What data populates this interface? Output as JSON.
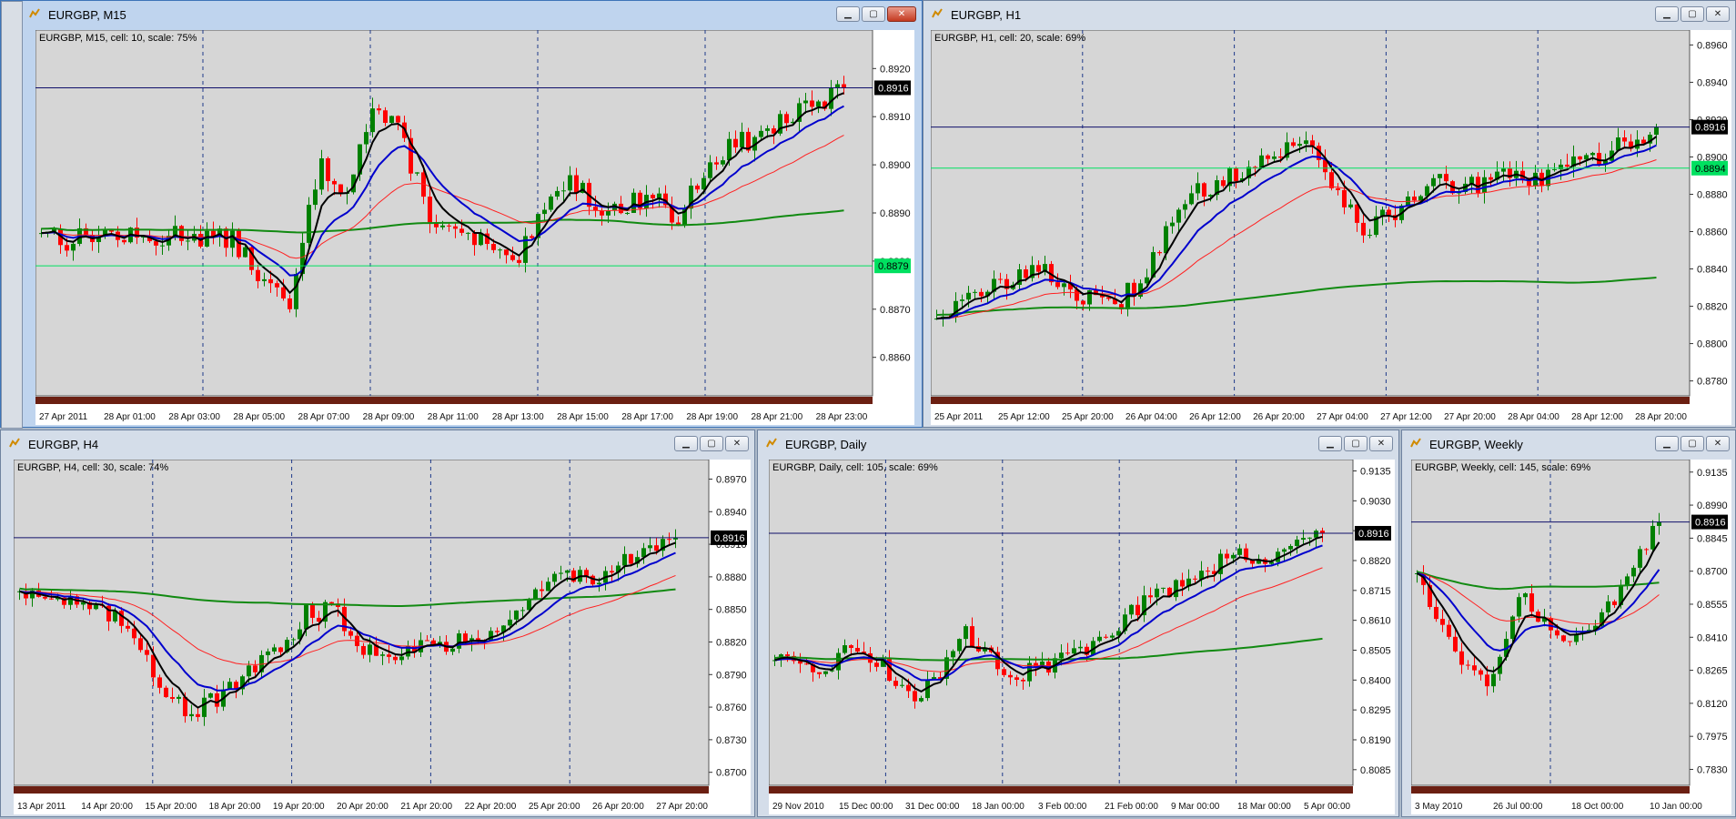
{
  "colors": {
    "chart_bg": "#d6d6d6",
    "bull": "#008000",
    "bear": "#ff0000",
    "ema_fast": "#000000",
    "ema_mid": "#0000cd",
    "ema_slow": "#ff2020",
    "sma_long": "#128a12",
    "grid": "#1e3a8a",
    "price_line": "#10106a",
    "hline": "#00e060"
  },
  "charts": [
    {
      "id": "m15",
      "title": "EURGBP, M15",
      "info": "EURGBP, M15, cell: 10, scale: 75%",
      "y_ticks": [
        "0.8920",
        "0.8910",
        "0.8900",
        "0.8890",
        "0.8880",
        "0.8870",
        "0.8860"
      ],
      "x_ticks": [
        "27 Apr 2011",
        "28 Apr 01:00",
        "28 Apr 03:00",
        "28 Apr 05:00",
        "28 Apr 07:00",
        "28 Apr 09:00",
        "28 Apr 11:00",
        "28 Apr 13:00",
        "28 Apr 15:00",
        "28 Apr 17:00",
        "28 Apr 19:00",
        "28 Apr 21:00",
        "28 Apr 23:00"
      ],
      "price_label": "0.8916",
      "hline_label": "0.8879"
    },
    {
      "id": "h1",
      "title": "EURGBP, H1",
      "info": "EURGBP, H1, cell: 20, scale: 69%",
      "y_ticks": [
        "0.8960",
        "0.8940",
        "0.8920",
        "0.8900",
        "0.8880",
        "0.8860",
        "0.8840",
        "0.8820",
        "0.8800",
        "0.8780"
      ],
      "x_ticks": [
        "25 Apr 2011",
        "25 Apr 12:00",
        "25 Apr 20:00",
        "26 Apr 04:00",
        "26 Apr 12:00",
        "26 Apr 20:00",
        "27 Apr 04:00",
        "27 Apr 12:00",
        "27 Apr 20:00",
        "28 Apr 04:00",
        "28 Apr 12:00",
        "28 Apr 20:00"
      ],
      "price_label": "0.8916",
      "hline_label": "0.8894"
    },
    {
      "id": "h4",
      "title": "EURGBP, H4",
      "info": "EURGBP, H4, cell: 30, scale: 74%",
      "y_ticks": [
        "0.8970",
        "0.8940",
        "0.8910",
        "0.8880",
        "0.8850",
        "0.8820",
        "0.8790",
        "0.8760",
        "0.8730",
        "0.8700"
      ],
      "x_ticks": [
        "13 Apr 2011",
        "14 Apr 20:00",
        "15 Apr 20:00",
        "18 Apr 20:00",
        "19 Apr 20:00",
        "20 Apr 20:00",
        "21 Apr 20:00",
        "22 Apr 20:00",
        "25 Apr 20:00",
        "26 Apr 20:00",
        "27 Apr 20:00"
      ],
      "price_label": "0.8916",
      "hline_label": ""
    },
    {
      "id": "daily",
      "title": "EURGBP, Daily",
      "info": "EURGBP, Daily, cell: 105, scale: 69%",
      "y_ticks": [
        "0.9135",
        "0.9030",
        "0.8925",
        "0.8820",
        "0.8715",
        "0.8610",
        "0.8505",
        "0.8400",
        "0.8295",
        "0.8190",
        "0.8085"
      ],
      "x_ticks": [
        "29 Nov 2010",
        "15 Dec 00:00",
        "31 Dec 00:00",
        "18 Jan 00:00",
        "3 Feb 00:00",
        "21 Feb 00:00",
        "9 Mar 00:00",
        "18 Mar 00:00",
        "5 Apr 00:00"
      ],
      "price_label": "0.8916",
      "hline_label": ""
    },
    {
      "id": "weekly",
      "title": "EURGBP, Weekly",
      "info": "EURGBP, Weekly, cell: 145, scale: 69%",
      "y_ticks": [
        "0.9135",
        "0.8990",
        "0.8845",
        "0.8700",
        "0.8555",
        "0.8410",
        "0.8265",
        "0.8120",
        "0.7975",
        "0.7830"
      ],
      "x_ticks": [
        "3 May 2010",
        "26 Jul 00:00",
        "18 Oct 00:00",
        "10 Jan 00:00"
      ],
      "price_label": "0.8916",
      "hline_label": ""
    }
  ],
  "chart_data": [
    {
      "type": "candlestick",
      "title": "EURGBP, M15",
      "ylim": [
        0.8852,
        0.8928
      ],
      "last": 0.8916,
      "hline": 0.8879,
      "close_path": [
        0.8887,
        0.8884,
        0.8886,
        0.8885,
        0.8884,
        0.8886,
        0.8885,
        0.8884,
        0.8876,
        0.887,
        0.89,
        0.8895,
        0.8912,
        0.8906,
        0.889,
        0.8885,
        0.8884,
        0.8878,
        0.8888,
        0.8898,
        0.8892,
        0.889,
        0.8895,
        0.8888,
        0.89,
        0.8904,
        0.8906,
        0.891,
        0.8912,
        0.8916
      ]
    },
    {
      "type": "candlestick",
      "title": "EURGBP, H1",
      "ylim": [
        0.8772,
        0.8968
      ],
      "last": 0.8916,
      "hline": 0.8894,
      "close_path": [
        0.8816,
        0.8822,
        0.883,
        0.884,
        0.8836,
        0.8826,
        0.8818,
        0.8832,
        0.886,
        0.888,
        0.889,
        0.8896,
        0.8903,
        0.8908,
        0.888,
        0.886,
        0.8872,
        0.8886,
        0.8884,
        0.8885,
        0.889,
        0.8888,
        0.8895,
        0.89,
        0.8908,
        0.8916
      ]
    },
    {
      "type": "candlestick",
      "title": "EURGBP, H4",
      "ylim": [
        0.8688,
        0.8988
      ],
      "last": 0.8916,
      "close_path": [
        0.887,
        0.8862,
        0.8855,
        0.8845,
        0.883,
        0.878,
        0.8755,
        0.8768,
        0.879,
        0.881,
        0.8845,
        0.885,
        0.8815,
        0.881,
        0.882,
        0.8815,
        0.8825,
        0.884,
        0.886,
        0.8885,
        0.888,
        0.889,
        0.89,
        0.8916
      ]
    },
    {
      "type": "candlestick",
      "title": "EURGBP, Daily",
      "ylim": [
        0.803,
        0.9175
      ],
      "last": 0.8916,
      "close_path": [
        0.848,
        0.842,
        0.846,
        0.852,
        0.844,
        0.834,
        0.842,
        0.856,
        0.847,
        0.842,
        0.846,
        0.848,
        0.856,
        0.864,
        0.87,
        0.876,
        0.88,
        0.886,
        0.882,
        0.888,
        0.8916
      ]
    },
    {
      "type": "candlestick",
      "title": "EURGBP, Weekly",
      "ylim": [
        0.776,
        0.919
      ],
      "last": 0.8916,
      "close_path": [
        0.87,
        0.85,
        0.84,
        0.828,
        0.82,
        0.835,
        0.865,
        0.85,
        0.845,
        0.842,
        0.847,
        0.852,
        0.865,
        0.88,
        0.8916
      ]
    }
  ]
}
